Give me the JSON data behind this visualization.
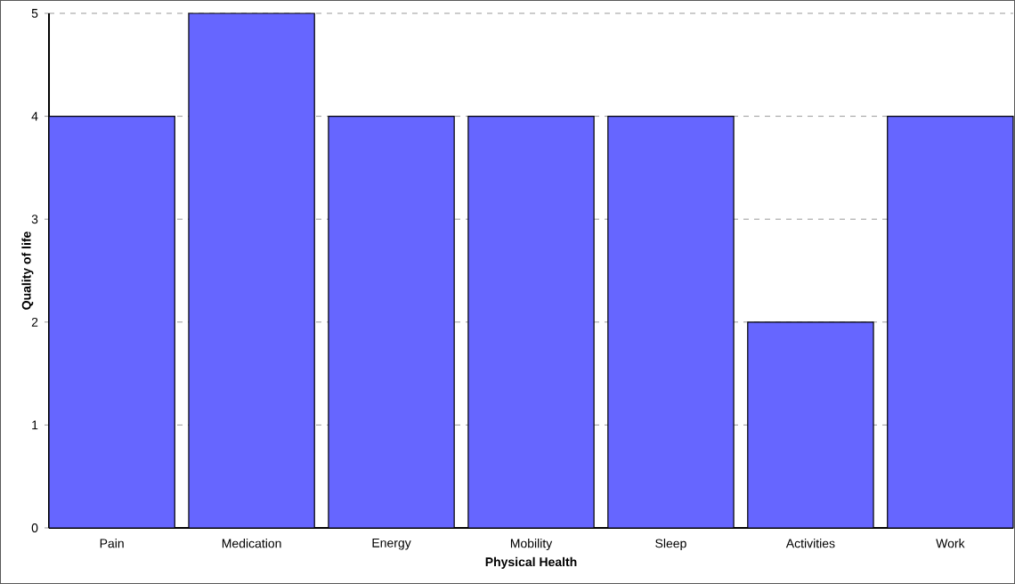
{
  "chart_data": {
    "type": "bar",
    "xlabel": "Physical Health",
    "ylabel": "Quality of life",
    "categories": [
      "Pain",
      "Medication",
      "Energy",
      "Mobility",
      "Sleep",
      "Activities",
      "Work"
    ],
    "values": [
      4,
      5,
      4,
      4,
      4,
      2,
      4
    ],
    "color": "#6666ff",
    "ylim": [
      0,
      5
    ],
    "yticks": [
      0,
      1,
      2,
      3,
      4,
      5
    ],
    "grid": "y"
  }
}
